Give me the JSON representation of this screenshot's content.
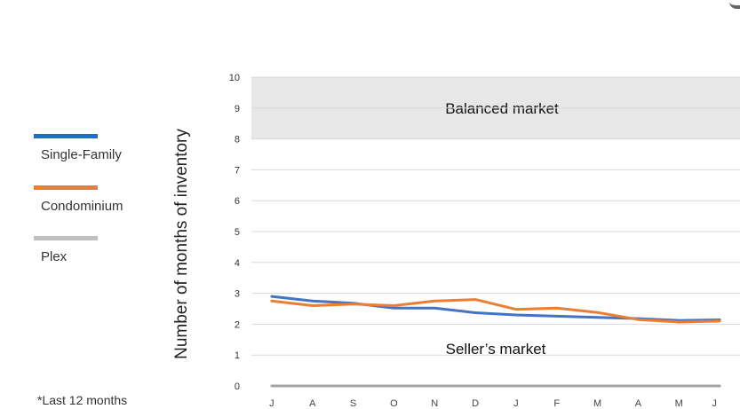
{
  "chart_data": {
    "type": "line",
    "categories": [
      "J",
      "A",
      "S",
      "O",
      "N",
      "D",
      "J",
      "F",
      "M",
      "A",
      "M",
      "J"
    ],
    "series": [
      {
        "name": "Single-Family",
        "color": "#4472C4",
        "values": [
          2.9,
          2.75,
          2.68,
          2.52,
          2.52,
          2.37,
          2.3,
          2.26,
          2.22,
          2.18,
          2.12,
          2.14
        ]
      },
      {
        "name": "Condominium",
        "color": "#ED7D31",
        "values": [
          2.75,
          2.6,
          2.65,
          2.6,
          2.75,
          2.8,
          2.48,
          2.52,
          2.38,
          2.15,
          2.07,
          2.1
        ]
      },
      {
        "name": "Plex",
        "color": "#A5A5A5",
        "values": [
          0,
          0,
          0,
          0,
          0,
          0,
          0,
          0,
          0,
          0,
          0,
          0
        ]
      }
    ],
    "ylabel": "Number of months of inventory",
    "xlabel": "",
    "ylim": [
      0,
      10
    ],
    "yticks": [
      0,
      1,
      2,
      3,
      4,
      5,
      6,
      7,
      8,
      9,
      10
    ],
    "grid": true,
    "legend_position": "left",
    "bands": [
      {
        "label": "Balanced market",
        "from": 8,
        "to": 10,
        "color": "#e7e7e7"
      }
    ],
    "annotations": [
      {
        "text": "Seller’s market",
        "x_index": 5.5,
        "y": 1.2
      }
    ],
    "footnote": "*Last 12 months"
  }
}
